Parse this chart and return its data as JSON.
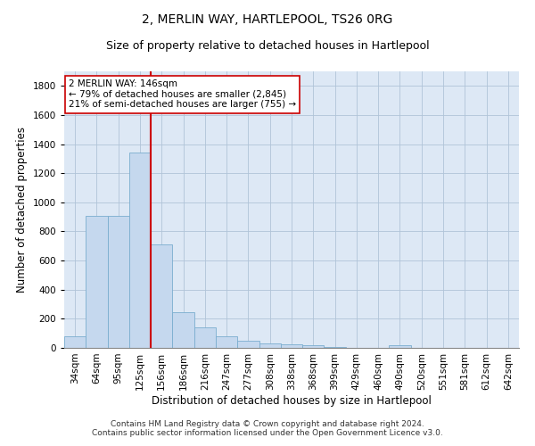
{
  "title": "2, MERLIN WAY, HARTLEPOOL, TS26 0RG",
  "subtitle": "Size of property relative to detached houses in Hartlepool",
  "xlabel": "Distribution of detached houses by size in Hartlepool",
  "ylabel": "Number of detached properties",
  "bar_color": "#c5d8ee",
  "bar_edge_color": "#7aadcf",
  "background_color": "#ffffff",
  "plot_bg_color": "#dde8f5",
  "grid_color": "#b0c4d8",
  "categories": [
    "34sqm",
    "64sqm",
    "95sqm",
    "125sqm",
    "156sqm",
    "186sqm",
    "216sqm",
    "247sqm",
    "277sqm",
    "308sqm",
    "338sqm",
    "368sqm",
    "399sqm",
    "429sqm",
    "460sqm",
    "490sqm",
    "520sqm",
    "551sqm",
    "581sqm",
    "612sqm",
    "642sqm"
  ],
  "values": [
    80,
    905,
    905,
    1340,
    710,
    248,
    140,
    78,
    50,
    28,
    22,
    18,
    5,
    0,
    0,
    18,
    0,
    0,
    0,
    0,
    0
  ],
  "ylim": [
    0,
    1900
  ],
  "yticks": [
    0,
    200,
    400,
    600,
    800,
    1000,
    1200,
    1400,
    1600,
    1800
  ],
  "vline_index": 4,
  "vline_color": "#cc0000",
  "annotation_text": "2 MERLIN WAY: 146sqm\n← 79% of detached houses are smaller (2,845)\n21% of semi-detached houses are larger (755) →",
  "annotation_box_color": "#ffffff",
  "annotation_box_edge": "#cc0000",
  "footer": "Contains HM Land Registry data © Crown copyright and database right 2024.\nContains public sector information licensed under the Open Government Licence v3.0.",
  "title_fontsize": 10,
  "subtitle_fontsize": 9,
  "axis_label_fontsize": 8.5,
  "tick_fontsize": 7.5,
  "annotation_fontsize": 7.5,
  "footer_fontsize": 6.5
}
